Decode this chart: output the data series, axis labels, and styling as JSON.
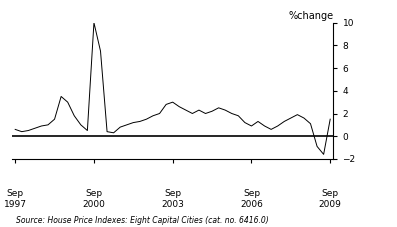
{
  "title": "%change",
  "source_text": "Source: House Price Indexes: Eight Capital Cities (cat. no. 6416.0)",
  "x_tick_labels": [
    [
      "Sep",
      "1997"
    ],
    [
      "Sep",
      "2000"
    ],
    [
      "Sep",
      "2003"
    ],
    [
      "Sep",
      "2006"
    ],
    [
      "Sep",
      "2009"
    ]
  ],
  "x_tick_positions": [
    0,
    12,
    24,
    36,
    48
  ],
  "ylim": [
    -2,
    10
  ],
  "yticks": [
    -2,
    0,
    2,
    4,
    6,
    8,
    10
  ],
  "line_color": "#000000",
  "background_color": "#ffffff",
  "data_x": [
    0,
    1,
    2,
    3,
    4,
    5,
    6,
    7,
    8,
    9,
    10,
    11,
    12,
    13,
    14,
    15,
    16,
    17,
    18,
    19,
    20,
    21,
    22,
    23,
    24,
    25,
    26,
    27,
    28,
    29,
    30,
    31,
    32,
    33,
    34,
    35,
    36,
    37,
    38,
    39,
    40,
    41,
    42,
    43,
    44,
    45,
    46,
    47,
    48
  ],
  "data_y": [
    0.6,
    0.4,
    0.5,
    0.7,
    0.9,
    1.0,
    1.5,
    3.5,
    3.0,
    1.8,
    1.0,
    0.5,
    10.0,
    7.5,
    0.4,
    0.3,
    0.8,
    1.0,
    1.2,
    1.3,
    1.5,
    1.8,
    2.0,
    2.8,
    3.0,
    2.6,
    2.3,
    2.0,
    2.3,
    2.0,
    2.2,
    2.5,
    2.3,
    2.0,
    1.8,
    1.2,
    0.9,
    1.3,
    0.9,
    0.6,
    0.9,
    1.3,
    1.6,
    1.9,
    1.6,
    1.1,
    -0.9,
    -1.6,
    1.5
  ]
}
